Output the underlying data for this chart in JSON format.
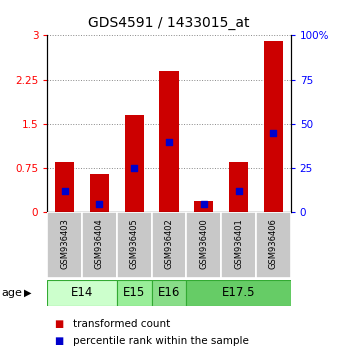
{
  "title": "GDS4591 / 1433015_at",
  "samples": [
    "GSM936403",
    "GSM936404",
    "GSM936405",
    "GSM936402",
    "GSM936400",
    "GSM936401",
    "GSM936406"
  ],
  "transformed_count": [
    0.85,
    0.65,
    1.65,
    2.4,
    0.2,
    0.85,
    2.9
  ],
  "percentile_rank": [
    12,
    5,
    25,
    40,
    5,
    12,
    45
  ],
  "age_groups": [
    {
      "label": "E14",
      "samples": [
        "GSM936403",
        "GSM936404"
      ],
      "color": "#ccffcc"
    },
    {
      "label": "E15",
      "samples": [
        "GSM936405"
      ],
      "color": "#99ee99"
    },
    {
      "label": "E16",
      "samples": [
        "GSM936402"
      ],
      "color": "#88dd88"
    },
    {
      "label": "E17.5",
      "samples": [
        "GSM936400",
        "GSM936401",
        "GSM936406"
      ],
      "color": "#66cc66"
    }
  ],
  "ylim_left": [
    0,
    3
  ],
  "ylim_right": [
    0,
    100
  ],
  "yticks_left": [
    0,
    0.75,
    1.5,
    2.25,
    3
  ],
  "yticks_right": [
    0,
    25,
    50,
    75,
    100
  ],
  "ytick_labels_right": [
    "0",
    "25",
    "50",
    "75",
    "100%"
  ],
  "bar_color": "#cc0000",
  "dot_color": "#0000cc",
  "bar_width": 0.55,
  "legend_tc": "transformed count",
  "legend_pr": "percentile rank within the sample",
  "age_label": "age",
  "sample_bg_color": "#c8c8c8",
  "title_fontsize": 10,
  "tick_fontsize": 7.5,
  "sample_fontsize": 6.0,
  "age_fontsize": 8.5,
  "legend_fontsize": 7.5
}
